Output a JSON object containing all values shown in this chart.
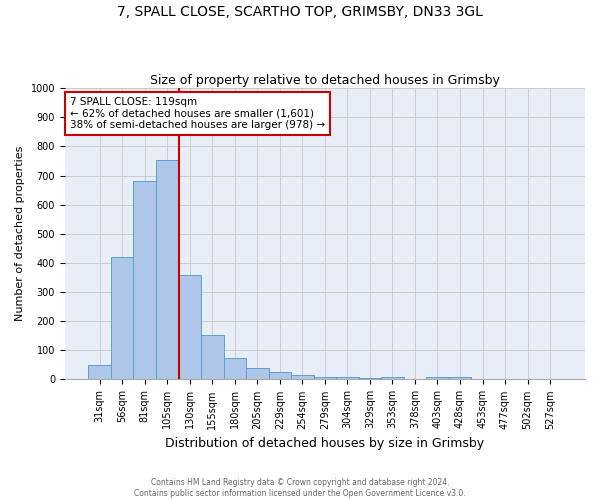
{
  "title1": "7, SPALL CLOSE, SCARTHO TOP, GRIMSBY, DN33 3GL",
  "title2": "Size of property relative to detached houses in Grimsby",
  "xlabel": "Distribution of detached houses by size in Grimsby",
  "ylabel": "Number of detached properties",
  "footer1": "Contains HM Land Registry data © Crown copyright and database right 2024.",
  "footer2": "Contains public sector information licensed under the Open Government Licence v3.0.",
  "categories": [
    "31sqm",
    "56sqm",
    "81sqm",
    "105sqm",
    "130sqm",
    "155sqm",
    "180sqm",
    "205sqm",
    "229sqm",
    "254sqm",
    "279sqm",
    "304sqm",
    "329sqm",
    "353sqm",
    "378sqm",
    "403sqm",
    "428sqm",
    "453sqm",
    "477sqm",
    "502sqm",
    "527sqm"
  ],
  "values": [
    50,
    422,
    681,
    752,
    360,
    152,
    72,
    38,
    27,
    15,
    10,
    7,
    5,
    8,
    0,
    8,
    7,
    0,
    0,
    0,
    0
  ],
  "bar_color": "#aec6e8",
  "bar_edge_color": "#5a9fd4",
  "vline_color": "#cc0000",
  "vline_x": 3.5,
  "annotation_text": "7 SPALL CLOSE: 119sqm\n← 62% of detached houses are smaller (1,601)\n38% of semi-detached houses are larger (978) →",
  "annotation_box_color": "#ffffff",
  "annotation_box_edge": "#cc0000",
  "ylim": [
    0,
    1000
  ],
  "yticks": [
    0,
    100,
    200,
    300,
    400,
    500,
    600,
    700,
    800,
    900,
    1000
  ],
  "bg_color": "#ffffff",
  "plot_bg_color": "#e8eef8",
  "grid_color": "#cccccc",
  "title1_fontsize": 10,
  "title2_fontsize": 9,
  "xlabel_fontsize": 9,
  "ylabel_fontsize": 8,
  "tick_fontsize": 7,
  "annot_fontsize": 7.5,
  "footer_fontsize": 5.5
}
